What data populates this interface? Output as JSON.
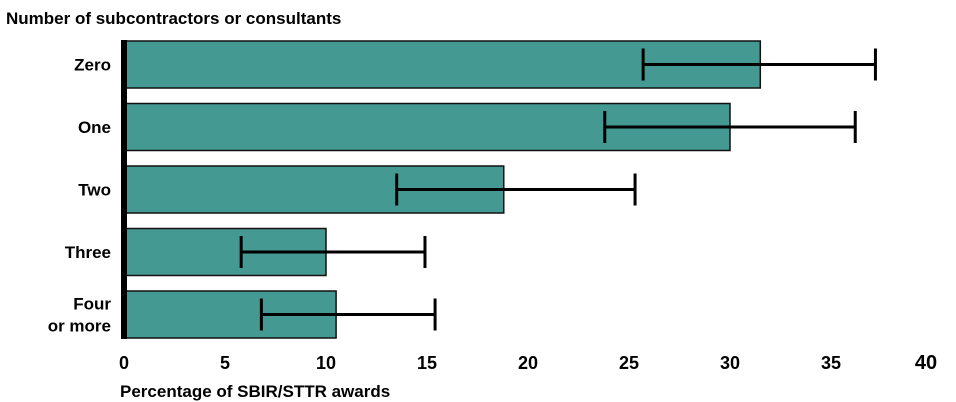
{
  "chart_data": {
    "type": "bar",
    "orientation": "horizontal",
    "title": "Number of subcontractors or consultants",
    "xlabel": "Percentage of SBIR/STTR awards",
    "ylabel": "",
    "categories": [
      "Zero",
      "One",
      "Two",
      "Three",
      "Four\nor more"
    ],
    "values": [
      31.5,
      30,
      18.8,
      10,
      10.5
    ],
    "error_low": [
      25.7,
      23.8,
      13.5,
      5.8,
      6.8
    ],
    "error_high": [
      37.2,
      36.2,
      25.3,
      14.9,
      15.4
    ],
    "xlim": [
      0,
      40
    ],
    "xticks": [
      "0",
      "5",
      "10",
      "15",
      "20",
      "25",
      "30",
      "35",
      "40"
    ],
    "grid": false,
    "legend": "none",
    "colors": {
      "bar_fill": "#449992",
      "bar_stroke": "#111111",
      "axis": "#000000",
      "error_bar": "#000000"
    }
  }
}
